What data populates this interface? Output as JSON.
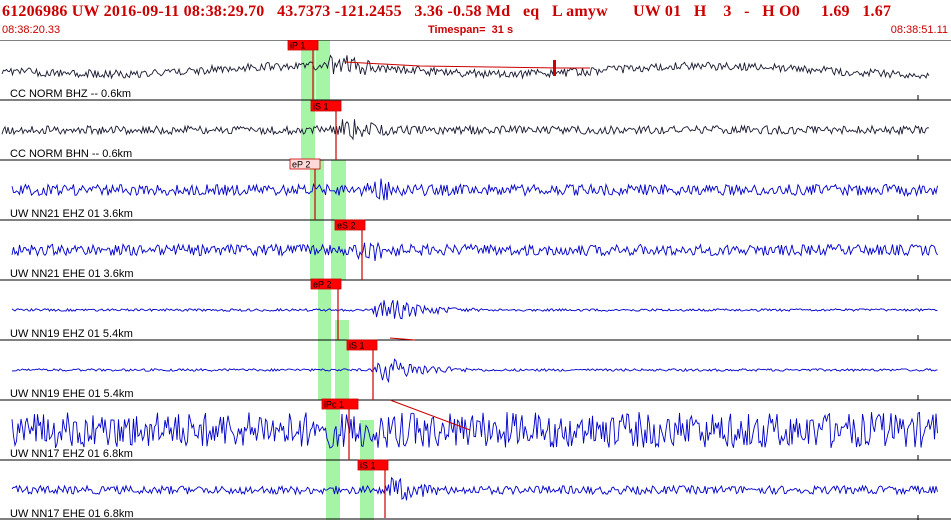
{
  "header": {
    "event_line": "61206986 UW 2016-09-11 08:38:29.70   43.7373 -121.2455   3.36 -0.58 Md   eq   L amyw      UW 01   H    3   -   H O0     1.69   1.67",
    "start_time": "08:38:20.33",
    "timespan": "Timespan=  31 s",
    "end_time": "08:38:51.11"
  },
  "colors": {
    "header_text": "#cc0000",
    "trace_black": "#1a1a33",
    "trace_blue": "#0000cc",
    "pick_window": "#a6f5a6",
    "pick_label_bg": "#ff0000",
    "pick_label_hollow": "#ffd9d9",
    "pick_line": "#cc0000"
  },
  "traces": [
    {
      "label": "CC NORM BHZ -- 0.6km",
      "color": "black",
      "amp": 6,
      "onset": 0.34,
      "peak": 30,
      "noise": 1.0
    },
    {
      "label": "CC NORM BHN -- 0.6km",
      "color": "black",
      "amp": 6,
      "onset": 0.35,
      "peak": 26,
      "noise": 1.0
    },
    {
      "label": "UW NN21 EHZ 01 3.6km",
      "color": "blue",
      "amp": 8,
      "onset": 0.38,
      "peak": 28,
      "noise": 1.0
    },
    {
      "label": "UW NN21 EHE 01 3.6km",
      "color": "blue",
      "amp": 8,
      "onset": 0.37,
      "peak": 27,
      "noise": 1.0
    },
    {
      "label": "UW NN19 EHZ 01 5.4km",
      "color": "blue",
      "amp": 3,
      "onset": 0.39,
      "peak": 26,
      "noise": 0.6
    },
    {
      "label": "UW NN19 EHE 01 5.4km",
      "color": "blue",
      "amp": 3,
      "onset": 0.39,
      "peak": 27,
      "noise": 0.6
    },
    {
      "label": "UW NN17 EHZ 01 6.8km",
      "color": "blue",
      "amp": 16,
      "onset": 0.4,
      "peak": 26,
      "noise": 1.6
    },
    {
      "label": "UW NN17 EHE 01 6.8km",
      "color": "blue",
      "amp": 6,
      "onset": 0.4,
      "peak": 27,
      "noise": 1.0
    }
  ],
  "picks": [
    {
      "trace": 0,
      "label": "iP 1",
      "style": "filled"
    },
    {
      "trace": 1,
      "label": "iS 1",
      "style": "filled"
    },
    {
      "trace": 2,
      "label": "eP 2",
      "style": "hollow"
    },
    {
      "trace": 3,
      "label": "eS 2",
      "style": "filled"
    },
    {
      "trace": 4,
      "label": "eP 2",
      "style": "filled"
    },
    {
      "trace": 5,
      "label": "iS 1",
      "style": "filled"
    },
    {
      "trace": 6,
      "label": "iPc 1",
      "style": "filled"
    },
    {
      "trace": 7,
      "label": "iS 1",
      "style": "filled"
    }
  ]
}
